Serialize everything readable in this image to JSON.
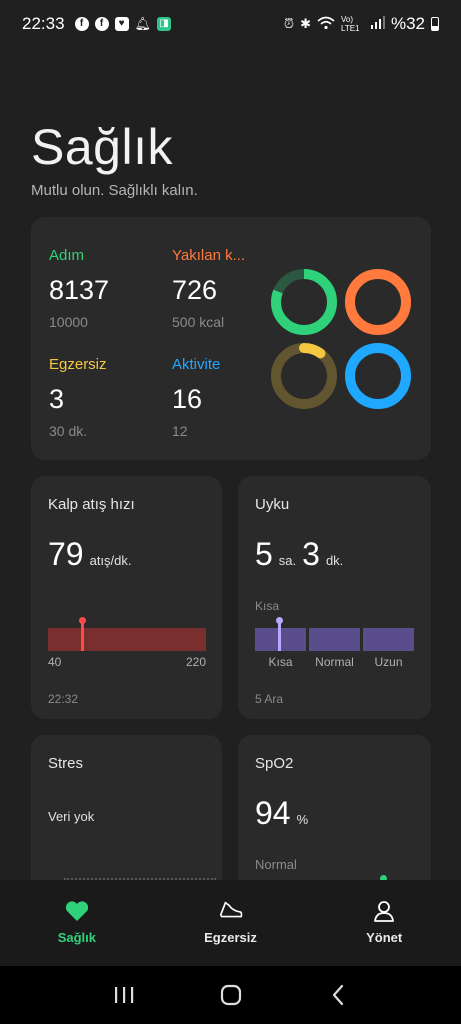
{
  "status_bar": {
    "time": "22:33",
    "battery": "%32",
    "volte": "Vo) LTE1"
  },
  "header": {
    "title": "Sağlık",
    "subtitle": "Mutlu olun. Sağlıklı kalın."
  },
  "activity": {
    "steps": {
      "label": "Adım",
      "value": "8137",
      "goal": "10000",
      "color": "#2fd27a",
      "progress": 0.81
    },
    "calories": {
      "label": "Yakılan k...",
      "value": "726",
      "goal": "500 kcal",
      "color": "#ff7a3c",
      "progress": 1.0
    },
    "exercise": {
      "label": "Egzersiz",
      "value": "3",
      "goal": "30 dk.",
      "color": "#f5c842",
      "progress": 0.1
    },
    "activity": {
      "label": "Aktivite",
      "value": "16",
      "goal": "12",
      "color": "#1fa8ff",
      "progress": 1.0
    }
  },
  "heart_rate": {
    "title": "Kalp atış hızı",
    "value": "79",
    "unit": "atış/dk.",
    "range_min": "40",
    "range_max": "220",
    "time": "22:32",
    "color": "#ff4a4a"
  },
  "sleep": {
    "title": "Uyku",
    "hours": "5",
    "hours_unit": "sa.",
    "minutes": "3",
    "minutes_unit": "dk.",
    "current_label": "Kısa",
    "segments": [
      "Kısa",
      "Normal",
      "Uzun"
    ],
    "date": "5 Ara"
  },
  "stress": {
    "title": "Stres",
    "status": "Veri yok"
  },
  "spo2": {
    "title": "SpO2",
    "value": "94",
    "unit": "%",
    "status": "Normal"
  },
  "nav": {
    "health": "Sağlık",
    "exercise": "Egzersiz",
    "manage": "Yönet"
  }
}
